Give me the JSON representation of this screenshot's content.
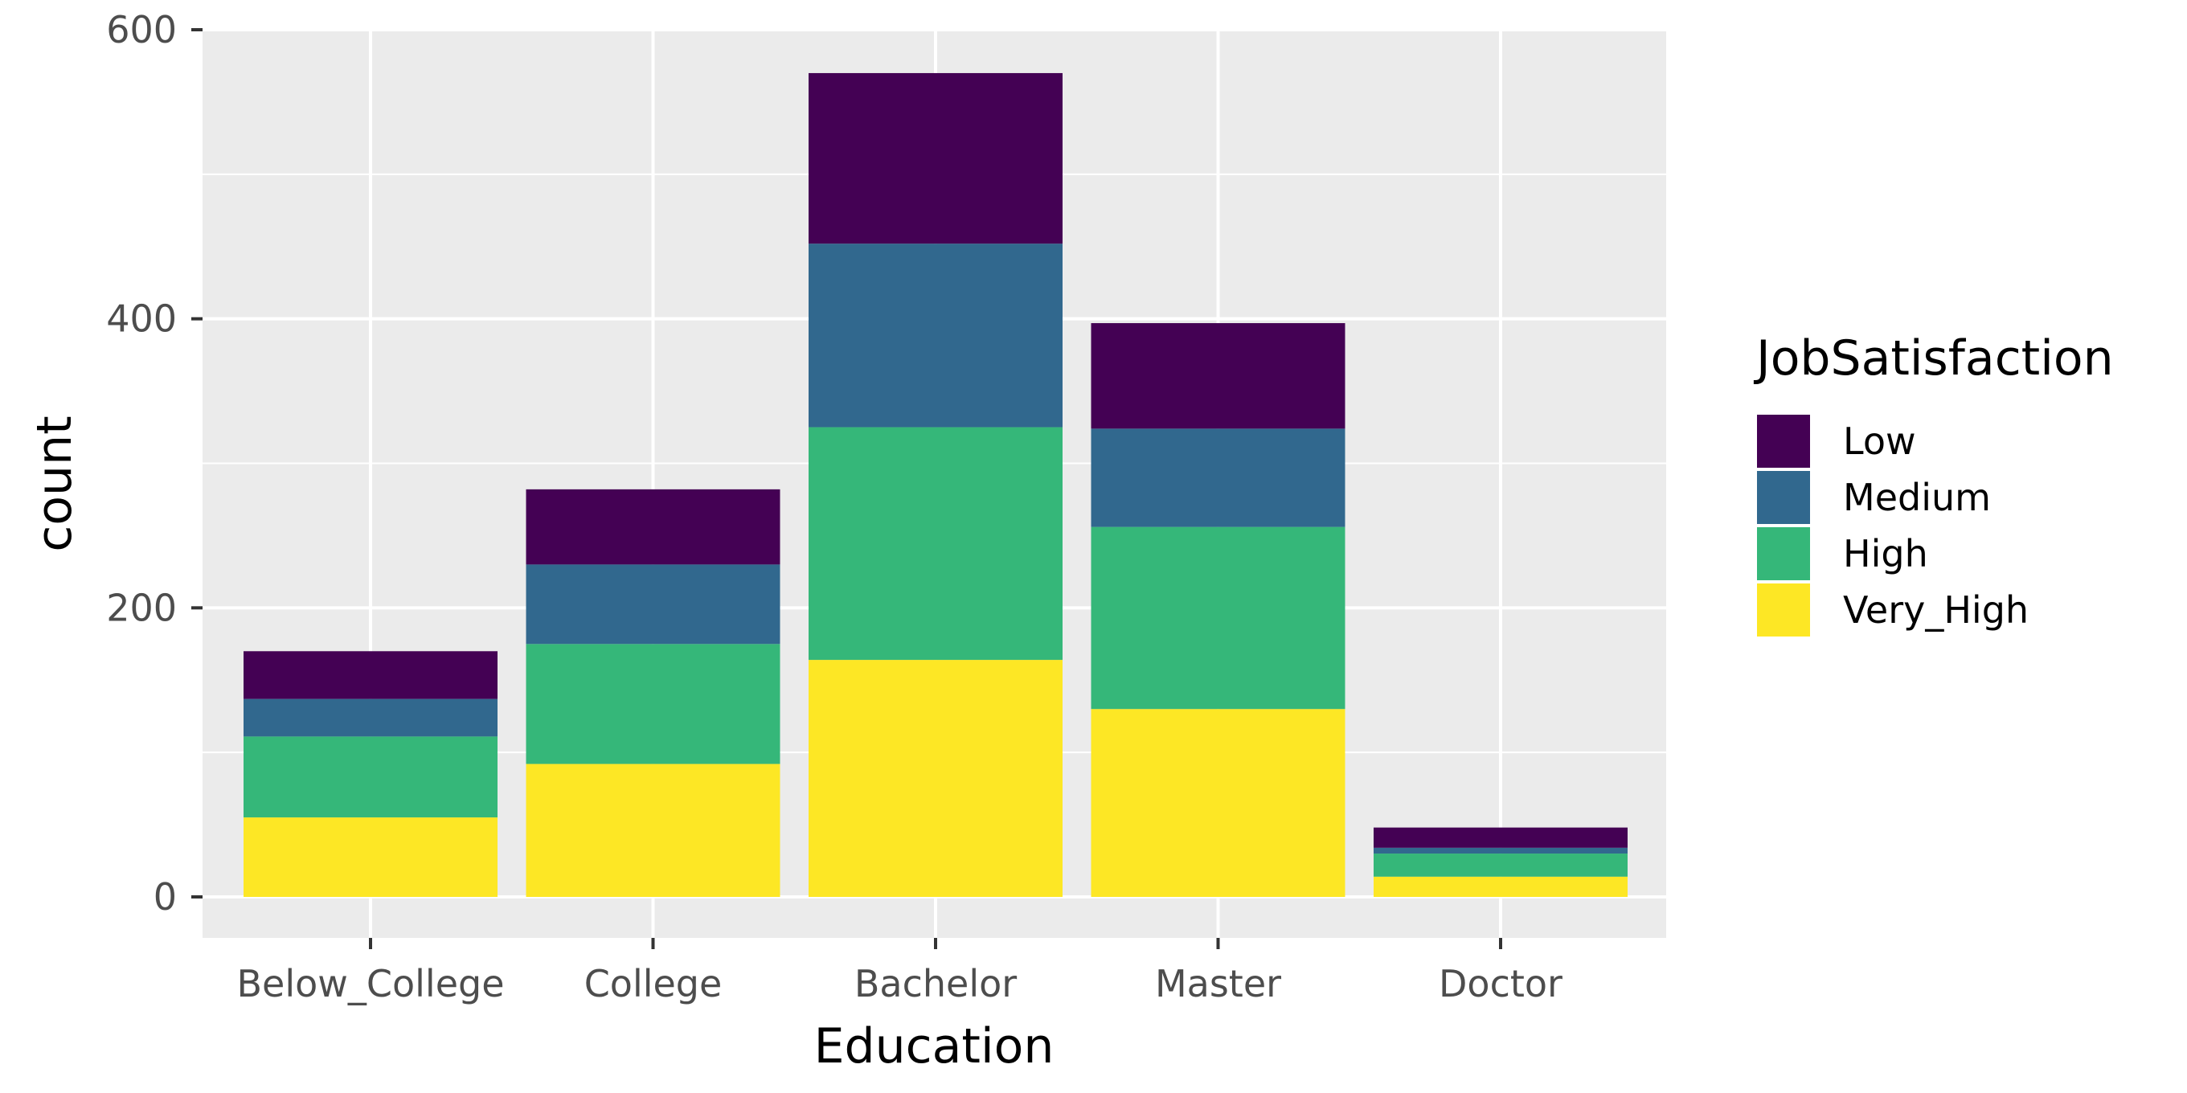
{
  "chart_data": {
    "type": "bar",
    "stacked": true,
    "categories": [
      "Below_College",
      "College",
      "Bachelor",
      "Master",
      "Doctor"
    ],
    "series": [
      {
        "name": "Low",
        "color": "#440154",
        "values": [
          33,
          52,
          118,
          73,
          14
        ]
      },
      {
        "name": "Medium",
        "color": "#31688E",
        "values": [
          26,
          55,
          127,
          68,
          4
        ]
      },
      {
        "name": "High",
        "color": "#35B779",
        "values": [
          56,
          83,
          161,
          126,
          16
        ]
      },
      {
        "name": "Very_High",
        "color": "#FDE725",
        "values": [
          55,
          92,
          164,
          130,
          14
        ]
      }
    ],
    "xlabel": "Education",
    "ylabel": "count",
    "ylim": [
      -27,
      600
    ],
    "yticks": [
      0,
      200,
      400,
      600
    ],
    "ytick_labels": [
      "0",
      "200",
      "400",
      "600"
    ],
    "grid": true,
    "legend": {
      "title": "JobSatisfaction",
      "position": "right"
    },
    "panel_background": "#EBEBEB",
    "grid_color": "#FFFFFF"
  }
}
